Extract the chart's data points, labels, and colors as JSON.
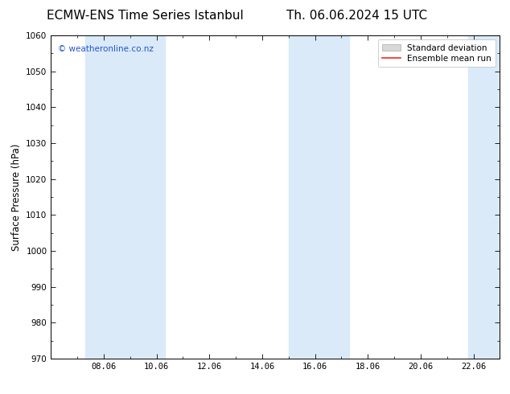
{
  "title_left": "ECMW-ENS Time Series Istanbul",
  "title_right": "Th. 06.06.2024 15 UTC",
  "ylabel": "Surface Pressure (hPa)",
  "ylim": [
    970,
    1060
  ],
  "yticks": [
    970,
    980,
    990,
    1000,
    1010,
    1020,
    1030,
    1040,
    1050,
    1060
  ],
  "xtick_labels": [
    "08.06",
    "10.06",
    "12.06",
    "14.06",
    "16.06",
    "18.06",
    "20.06",
    "22.06"
  ],
  "xtick_positions": [
    2,
    4,
    6,
    8,
    10,
    12,
    14,
    16
  ],
  "xlim": [
    0,
    17
  ],
  "shaded_regions": [
    {
      "x_start": 1.3,
      "x_end": 3.3
    },
    {
      "x_start": 3.3,
      "x_end": 4.3
    },
    {
      "x_start": 9.0,
      "x_end": 10.5
    },
    {
      "x_start": 10.5,
      "x_end": 11.3
    },
    {
      "x_start": 15.8,
      "x_end": 17.0
    }
  ],
  "background_color": "#ffffff",
  "band_color": "#daeaf8",
  "legend_std_facecolor": "#d8d8d8",
  "legend_std_edgecolor": "#aaaaaa",
  "legend_mean_color": "#ff2222",
  "watermark": "© weatheronline.co.nz",
  "watermark_color": "#2255cc",
  "title_fontsize": 11,
  "tick_fontsize": 7.5,
  "ylabel_fontsize": 8.5,
  "legend_fontsize": 7.5,
  "watermark_fontsize": 7.5,
  "fig_width": 6.34,
  "fig_height": 4.9,
  "dpi": 100
}
